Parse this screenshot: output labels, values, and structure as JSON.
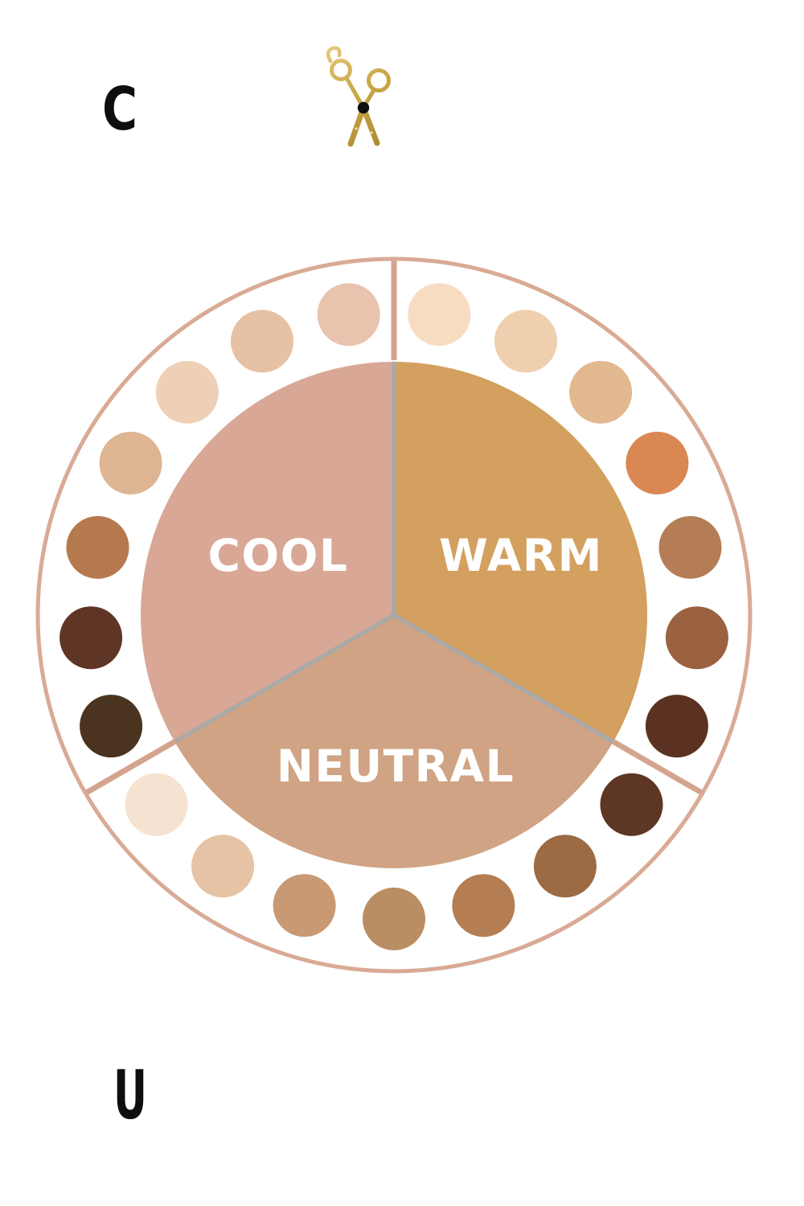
{
  "header": {
    "visible_letter": "C"
  },
  "scissors_icon": {
    "gold_light": "#e6cb7c",
    "gold_mid": "#c7a343",
    "gold_dark": "#a8882e",
    "pivot_color": "#101010",
    "sparkle_color": "#f3e3a6"
  },
  "wheel": {
    "labels": {
      "cool": "COOL",
      "warm": "WARM",
      "neutral": "NEUTRAL"
    },
    "label_color": "#ffffff",
    "sector_colors": {
      "cool": "#d8a795",
      "warm": "#d3a05f",
      "neutral": "#cfa383"
    },
    "sector_divider_color": "#a9a9a9",
    "ring_divider_color": "#d4a48e",
    "outer_circle_color": "#d9aa94",
    "swatches": {
      "warm": [
        "#f8dcc2",
        "#efcfad",
        "#e2b88e",
        "#d98753",
        "#b57d55",
        "#9a6240",
        "#5b3222"
      ],
      "neutral": [
        "#5e3625",
        "#9c6b44",
        "#b47e52",
        "#b98e63",
        "#c99973",
        "#e6c3a5",
        "#f6e2d1"
      ],
      "cool": [
        "#4a331f",
        "#5f3526",
        "#b5794d",
        "#ddb592",
        "#eed0b6",
        "#e7c1a4",
        "#e8c3ae"
      ]
    }
  },
  "footer": {
    "visible_letter": "U"
  }
}
